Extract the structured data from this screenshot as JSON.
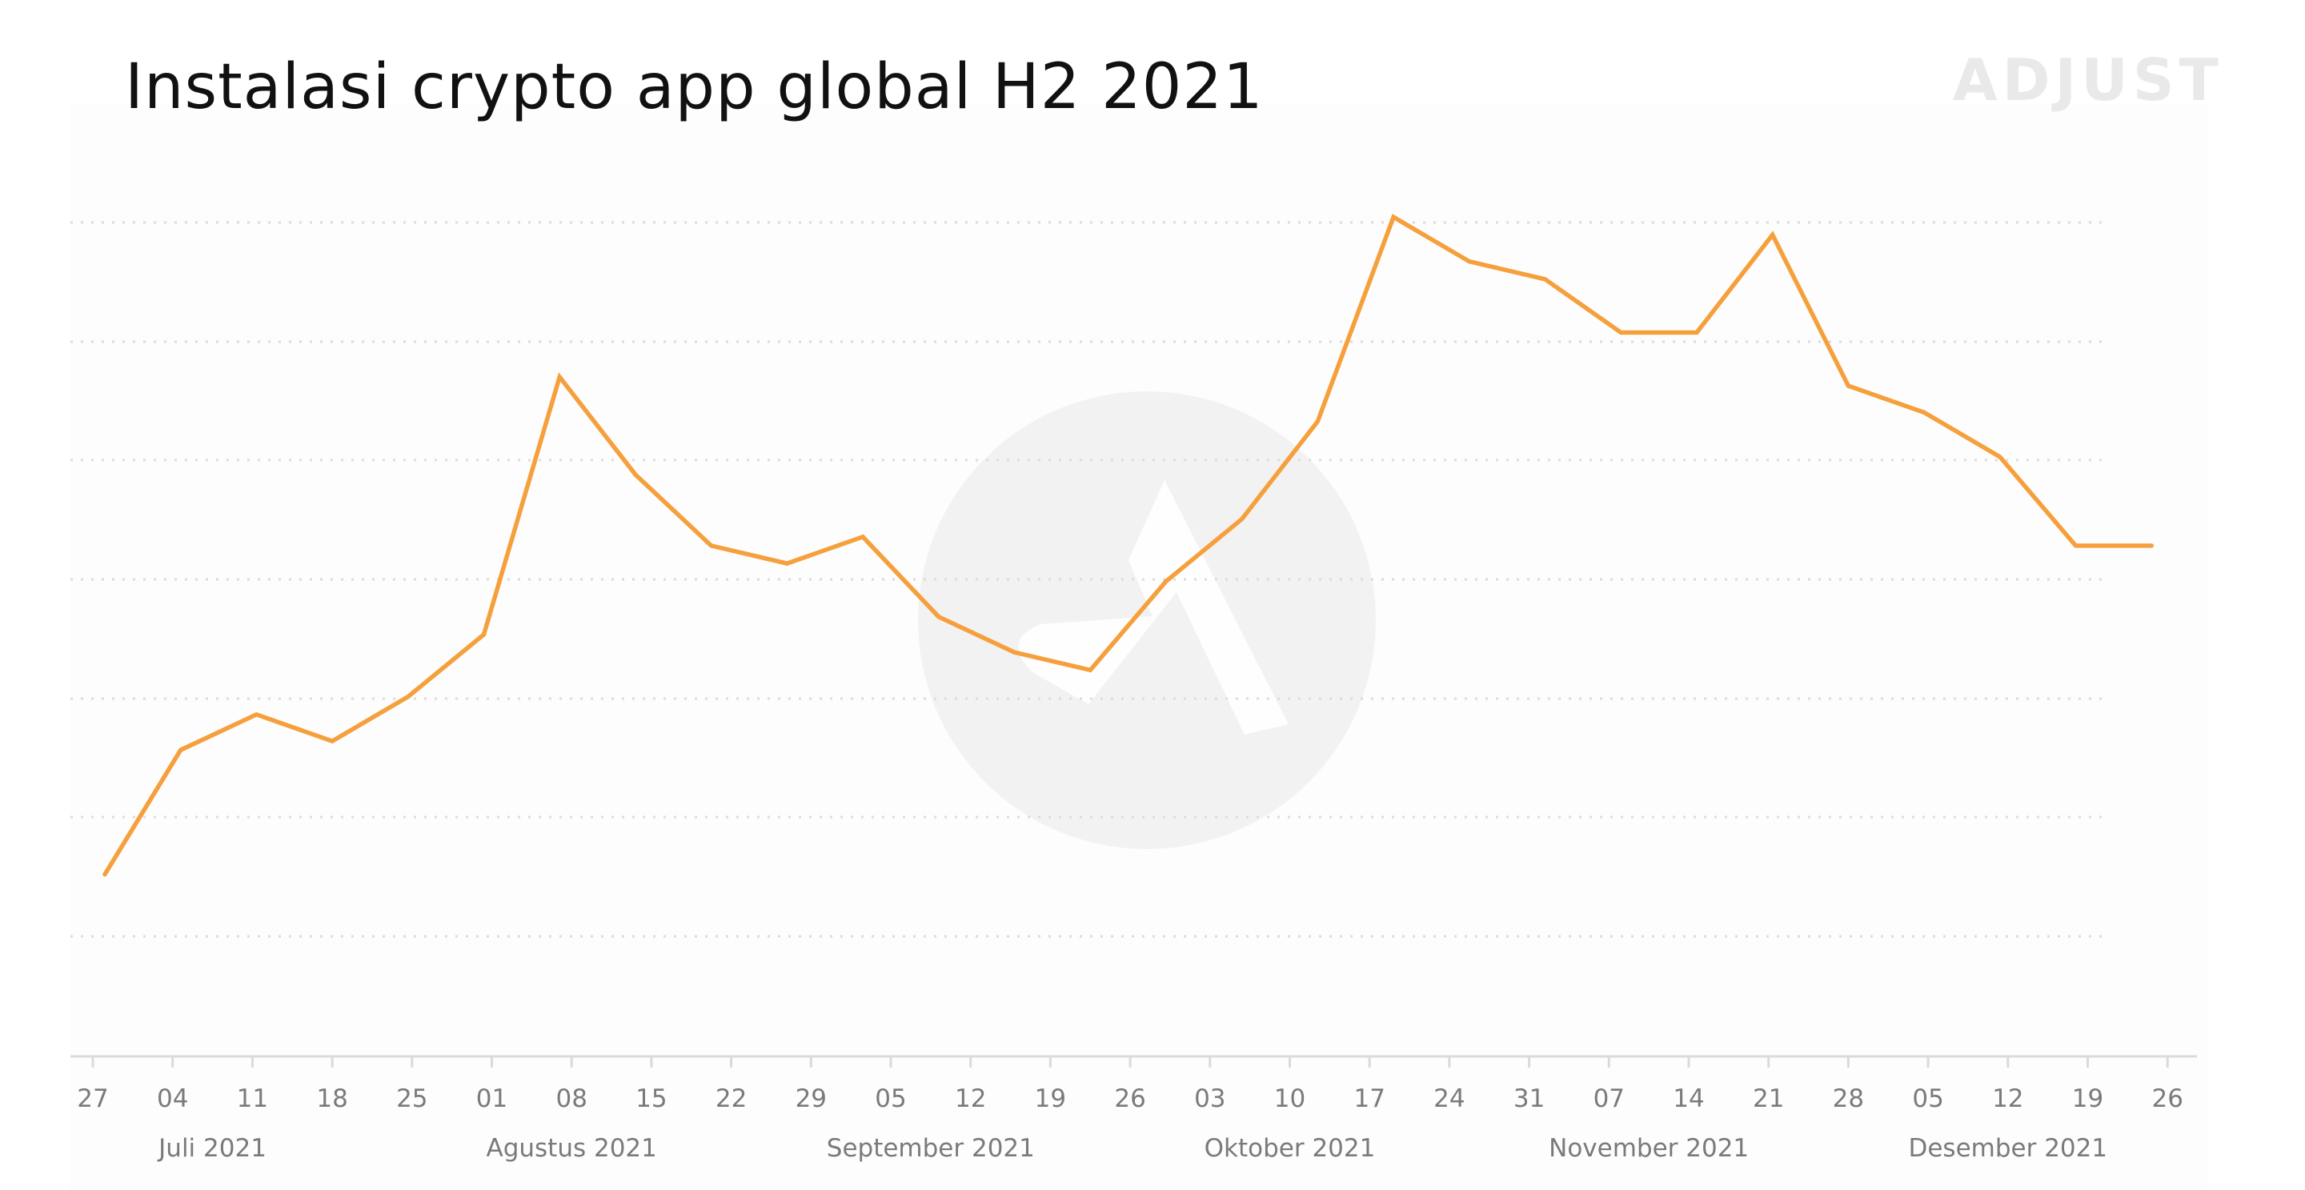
{
  "header": {
    "title": "Instalasi crypto app global H2 2021",
    "brand": "ADJUST"
  },
  "colors": {
    "line": "#f5a03c",
    "grid": "#dcdcdc",
    "axis": "#dadada",
    "tick_text": "#7a7a7a",
    "watermark": "#f2f2f2"
  },
  "watermark_icon": "adjust-logo-icon",
  "chart_data": {
    "type": "line",
    "title": "Instalasi crypto app global H2 2021",
    "xlabel": "",
    "ylabel": "",
    "y_tick_labels_shown": false,
    "ylim": [
      0,
      100
    ],
    "grid": true,
    "x_tick_labels": [
      "27",
      "04",
      "11",
      "18",
      "25",
      "01",
      "08",
      "15",
      "22",
      "29",
      "05",
      "12",
      "19",
      "26",
      "03",
      "10",
      "17",
      "24",
      "31",
      "07",
      "14",
      "21",
      "28",
      "05",
      "12",
      "19",
      "26"
    ],
    "month_labels": [
      {
        "label": "Juli  2021",
        "at_tick": 1.5
      },
      {
        "label": "Agustus 2021",
        "at_tick": 6
      },
      {
        "label": "September 2021",
        "at_tick": 10.5
      },
      {
        "label": "Oktober  2021",
        "at_tick": 15
      },
      {
        "label": "November 2021",
        "at_tick": 19.5
      },
      {
        "label": "Desember 2021",
        "at_tick": 24
      }
    ],
    "series": [
      {
        "name": "",
        "x": [
          0.15,
          1.1,
          2.05,
          3.0,
          3.95,
          4.9,
          5.85,
          6.8,
          7.75,
          8.7,
          9.65,
          10.6,
          11.55,
          12.5,
          13.45,
          14.4,
          15.35,
          16.3,
          17.25,
          18.2,
          19.15,
          20.1,
          21.05,
          22.0,
          22.95,
          23.9,
          24.85,
          25.8
        ],
        "values": [
          14,
          28,
          32,
          29,
          34,
          41,
          70,
          59,
          51,
          49,
          52,
          43,
          39,
          37,
          47,
          54,
          65,
          88,
          83,
          81,
          75,
          75,
          86,
          69,
          66,
          61,
          51,
          51
        ]
      }
    ]
  }
}
